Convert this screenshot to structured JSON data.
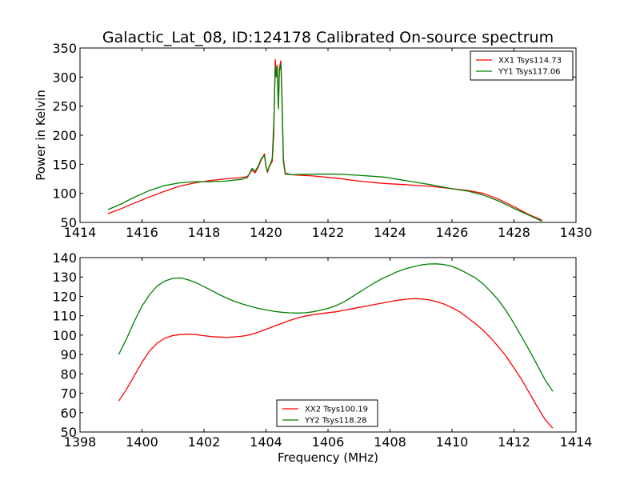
{
  "colors": {
    "red": "#ff0000",
    "green": "#008000"
  },
  "chart_data": [
    {
      "type": "line",
      "title": "Galactic_Lat_08, ID:124178 Calibrated On-source spectrum",
      "xlabel": "",
      "ylabel": "Power in Kelvin",
      "xlim": [
        1414,
        1430
      ],
      "ylim": [
        50,
        350
      ],
      "xticks": [
        1414,
        1416,
        1418,
        1420,
        1422,
        1424,
        1426,
        1428,
        1430
      ],
      "yticks": [
        50,
        100,
        150,
        200,
        250,
        300,
        350
      ],
      "legend_position": "upper right",
      "series": [
        {
          "name": "XX1 Tsys114.73",
          "color": "#ff0000",
          "points": [
            [
              1414.9,
              65
            ],
            [
              1415.3,
              73
            ],
            [
              1415.7,
              82
            ],
            [
              1416.2,
              93
            ],
            [
              1416.7,
              103
            ],
            [
              1417.2,
              112
            ],
            [
              1417.7,
              118
            ],
            [
              1418.2,
              122
            ],
            [
              1418.7,
              125
            ],
            [
              1419.2,
              127
            ],
            [
              1419.4,
              129
            ],
            [
              1419.55,
              140
            ],
            [
              1419.65,
              135
            ],
            [
              1419.75,
              145
            ],
            [
              1419.85,
              158
            ],
            [
              1419.95,
              168
            ],
            [
              1420.0,
              145
            ],
            [
              1420.05,
              136
            ],
            [
              1420.1,
              145
            ],
            [
              1420.15,
              150
            ],
            [
              1420.2,
              155
            ],
            [
              1420.25,
              200
            ],
            [
              1420.3,
              330
            ],
            [
              1420.33,
              305
            ],
            [
              1420.36,
              320
            ],
            [
              1420.4,
              250
            ],
            [
              1420.43,
              315
            ],
            [
              1420.48,
              328
            ],
            [
              1420.52,
              260
            ],
            [
              1420.56,
              160
            ],
            [
              1420.62,
              135
            ],
            [
              1420.8,
              132
            ],
            [
              1421.5,
              130
            ],
            [
              1422.3,
              126
            ],
            [
              1423.0,
              121
            ],
            [
              1423.8,
              117
            ],
            [
              1424.5,
              115
            ],
            [
              1425.3,
              112
            ],
            [
              1426.0,
              108
            ],
            [
              1426.5,
              105
            ],
            [
              1427.0,
              100
            ],
            [
              1427.5,
              90
            ],
            [
              1428.0,
              77
            ],
            [
              1428.5,
              63
            ],
            [
              1428.9,
              54
            ]
          ]
        },
        {
          "name": "YY1 Tsys117.06",
          "color": "#008000",
          "points": [
            [
              1414.9,
              72
            ],
            [
              1415.3,
              81
            ],
            [
              1415.7,
              92
            ],
            [
              1416.2,
              104
            ],
            [
              1416.7,
              113
            ],
            [
              1417.2,
              118
            ],
            [
              1417.7,
              120
            ],
            [
              1418.2,
              120
            ],
            [
              1418.7,
              121
            ],
            [
              1419.2,
              124
            ],
            [
              1419.4,
              127
            ],
            [
              1419.55,
              143
            ],
            [
              1419.65,
              138
            ],
            [
              1419.75,
              147
            ],
            [
              1419.85,
              160
            ],
            [
              1419.95,
              165
            ],
            [
              1420.0,
              146
            ],
            [
              1420.05,
              138
            ],
            [
              1420.1,
              146
            ],
            [
              1420.15,
              152
            ],
            [
              1420.2,
              160
            ],
            [
              1420.25,
              220
            ],
            [
              1420.3,
              318
            ],
            [
              1420.33,
              300
            ],
            [
              1420.36,
              318
            ],
            [
              1420.4,
              245
            ],
            [
              1420.43,
              310
            ],
            [
              1420.48,
              323
            ],
            [
              1420.52,
              255
            ],
            [
              1420.56,
              155
            ],
            [
              1420.62,
              133
            ],
            [
              1420.8,
              132
            ],
            [
              1421.5,
              133
            ],
            [
              1422.3,
              133
            ],
            [
              1423.0,
              131
            ],
            [
              1423.8,
              128
            ],
            [
              1424.5,
              122
            ],
            [
              1425.3,
              115
            ],
            [
              1426.0,
              108
            ],
            [
              1426.5,
              104
            ],
            [
              1427.0,
              97
            ],
            [
              1427.5,
              87
            ],
            [
              1428.0,
              74
            ],
            [
              1428.5,
              62
            ],
            [
              1428.9,
              52
            ]
          ]
        }
      ]
    },
    {
      "type": "line",
      "title": "",
      "xlabel": "Frequency (MHz)",
      "ylabel": "",
      "xlim": [
        1398,
        1414
      ],
      "ylim": [
        50,
        140
      ],
      "xticks": [
        1398,
        1400,
        1402,
        1404,
        1406,
        1408,
        1410,
        1412,
        1414
      ],
      "yticks": [
        50,
        60,
        70,
        80,
        90,
        100,
        110,
        120,
        130,
        140
      ],
      "legend_position": "lower center",
      "series": [
        {
          "name": "XX2 Tsys100.19",
          "color": "#ff0000",
          "points": [
            [
              1399.25,
              66
            ],
            [
              1399.5,
              72
            ],
            [
              1399.75,
              79
            ],
            [
              1400.0,
              86
            ],
            [
              1400.25,
              92
            ],
            [
              1400.5,
              96
            ],
            [
              1400.75,
              98.5
            ],
            [
              1401.0,
              99.8
            ],
            [
              1401.25,
              100.3
            ],
            [
              1401.5,
              100.5
            ],
            [
              1401.75,
              100.2
            ],
            [
              1402.0,
              99.7
            ],
            [
              1402.25,
              99.2
            ],
            [
              1402.5,
              99.0
            ],
            [
              1402.75,
              98.9
            ],
            [
              1403.0,
              99.1
            ],
            [
              1403.25,
              99.5
            ],
            [
              1403.5,
              100.2
            ],
            [
              1403.75,
              101.5
            ],
            [
              1404.0,
              103
            ],
            [
              1404.25,
              104.5
            ],
            [
              1404.5,
              106
            ],
            [
              1404.75,
              107.5
            ],
            [
              1405.0,
              108.8
            ],
            [
              1405.25,
              109.8
            ],
            [
              1405.5,
              110.5
            ],
            [
              1405.75,
              111
            ],
            [
              1406.0,
              111.6
            ],
            [
              1406.25,
              112
            ],
            [
              1406.5,
              112.8
            ],
            [
              1406.75,
              113.5
            ],
            [
              1407.0,
              114.3
            ],
            [
              1407.25,
              115
            ],
            [
              1407.5,
              115.8
            ],
            [
              1407.75,
              116.5
            ],
            [
              1408.0,
              117.3
            ],
            [
              1408.25,
              118
            ],
            [
              1408.5,
              118.5
            ],
            [
              1408.75,
              118.8
            ],
            [
              1409.0,
              118.7
            ],
            [
              1409.25,
              118.2
            ],
            [
              1409.5,
              117.3
            ],
            [
              1409.75,
              116
            ],
            [
              1410.0,
              114.2
            ],
            [
              1410.25,
              112
            ],
            [
              1410.5,
              109
            ],
            [
              1410.75,
              106
            ],
            [
              1411.0,
              102.5
            ],
            [
              1411.25,
              98.5
            ],
            [
              1411.5,
              94
            ],
            [
              1411.75,
              89
            ],
            [
              1412.0,
              83
            ],
            [
              1412.25,
              77
            ],
            [
              1412.5,
              70
            ],
            [
              1412.75,
              63
            ],
            [
              1413.0,
              56.5
            ],
            [
              1413.25,
              52
            ]
          ]
        },
        {
          "name": "YY2 Tsys118.28",
          "color": "#008000",
          "points": [
            [
              1399.25,
              90
            ],
            [
              1399.5,
              98
            ],
            [
              1399.75,
              107
            ],
            [
              1400.0,
              115
            ],
            [
              1400.25,
              121
            ],
            [
              1400.5,
              125.5
            ],
            [
              1400.75,
              128
            ],
            [
              1401.0,
              129.3
            ],
            [
              1401.25,
              129.5
            ],
            [
              1401.5,
              128.5
            ],
            [
              1401.75,
              127
            ],
            [
              1402.0,
              125
            ],
            [
              1402.25,
              123
            ],
            [
              1402.5,
              120.8
            ],
            [
              1402.75,
              119
            ],
            [
              1403.0,
              117.3
            ],
            [
              1403.25,
              116
            ],
            [
              1403.5,
              114.8
            ],
            [
              1403.75,
              113.8
            ],
            [
              1404.0,
              113
            ],
            [
              1404.25,
              112.3
            ],
            [
              1404.5,
              111.8
            ],
            [
              1404.75,
              111.5
            ],
            [
              1405.0,
              111.4
            ],
            [
              1405.25,
              111.5
            ],
            [
              1405.5,
              112
            ],
            [
              1405.75,
              112.8
            ],
            [
              1406.0,
              113.8
            ],
            [
              1406.25,
              115.2
            ],
            [
              1406.5,
              117
            ],
            [
              1406.75,
              119.5
            ],
            [
              1407.0,
              122
            ],
            [
              1407.25,
              124.5
            ],
            [
              1407.5,
              127
            ],
            [
              1407.75,
              129.2
            ],
            [
              1408.0,
              131
            ],
            [
              1408.25,
              132.8
            ],
            [
              1408.5,
              134.2
            ],
            [
              1408.75,
              135.3
            ],
            [
              1409.0,
              136.2
            ],
            [
              1409.25,
              136.7
            ],
            [
              1409.5,
              136.8
            ],
            [
              1409.75,
              136.4
            ],
            [
              1410.0,
              135.5
            ],
            [
              1410.25,
              133.8
            ],
            [
              1410.5,
              131.8
            ],
            [
              1410.75,
              129.5
            ],
            [
              1411.0,
              126.5
            ],
            [
              1411.25,
              122.5
            ],
            [
              1411.5,
              118
            ],
            [
              1411.75,
              112.5
            ],
            [
              1412.0,
              106
            ],
            [
              1412.25,
              99
            ],
            [
              1412.5,
              92
            ],
            [
              1412.75,
              84.5
            ],
            [
              1413.0,
              77
            ],
            [
              1413.25,
              71
            ]
          ]
        }
      ]
    }
  ]
}
